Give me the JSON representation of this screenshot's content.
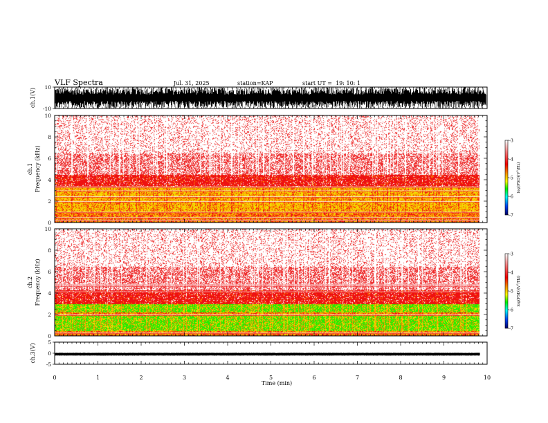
{
  "header": {
    "title": "VLF Spectra",
    "date": "Jul. 31, 2025",
    "station": "station=KAP",
    "start": "start UT =  19: 10: 1"
  },
  "colors": {
    "frame": "#000000",
    "spectro_bg": "#ffffff",
    "speckle": "#ee2a2a",
    "red": "#ee1111",
    "orange": "#ff8a00",
    "yellow": "#f2e000",
    "green": "#22ee00"
  },
  "chart_data": [
    {
      "type": "line",
      "name": "ch1-waveform",
      "ylabel": "ch.1(V)",
      "ylim": [
        -10,
        10
      ],
      "yticks": [
        10,
        -10
      ],
      "xlim": [
        0,
        10
      ],
      "description_values": {
        "min": -10,
        "max": 10
      }
    },
    {
      "type": "heatmap",
      "name": "ch1-spectrogram",
      "ylabel": "ch.1\nFrequency (kHz)",
      "ylabel_lines": [
        "ch.1",
        "Frequency (kHz)"
      ],
      "ylim": [
        0,
        10
      ],
      "yticks": [
        0,
        2,
        4,
        6,
        8,
        10
      ],
      "xlim": [
        0,
        10
      ],
      "data_end_min": 9.83,
      "bands": [
        {
          "from": 0,
          "to": 0.4,
          "level": "orange"
        },
        {
          "from": 0.4,
          "to": 1.6,
          "level": "orange"
        },
        {
          "from": 1.0,
          "to": 2.0,
          "level": "yellow"
        },
        {
          "from": 2.0,
          "to": 3.4,
          "level": "yellow"
        },
        {
          "from": 3.4,
          "to": 4.5,
          "level": "red"
        },
        {
          "from": 4.5,
          "to": 6.5,
          "level": "speckle-dense"
        },
        {
          "from": 6.5,
          "to": 10,
          "level": "speckle"
        }
      ],
      "lines_khz": [
        0.25,
        0.5,
        1.0,
        2.0,
        2.45,
        3.0,
        3.35
      ],
      "colorbar": {
        "label": "log(PSD)(V²/Hz)",
        "label_parts": [
          "log(PSD)(V",
          "2",
          "/Hz)"
        ],
        "ticks": [
          -3,
          -4,
          -5,
          -6,
          -7
        ],
        "range": [
          -7,
          -3
        ]
      }
    },
    {
      "type": "heatmap",
      "name": "ch2-spectrogram",
      "ylabel": "ch.2\nFrequency (kHz)",
      "ylabel_lines": [
        "ch.2",
        "Frequency (kHz)"
      ],
      "ylim": [
        0,
        10
      ],
      "yticks": [
        0,
        2,
        4,
        6,
        8,
        10
      ],
      "xlim": [
        0,
        10
      ],
      "data_end_min": 9.83,
      "bands": [
        {
          "from": 0,
          "to": 0.5,
          "level": "orange"
        },
        {
          "from": 0.5,
          "to": 1.9,
          "level": "green"
        },
        {
          "from": 1.9,
          "to": 2.2,
          "level": "orange"
        },
        {
          "from": 2.2,
          "to": 3.0,
          "level": "green"
        },
        {
          "from": 3.0,
          "to": 4.3,
          "level": "red"
        },
        {
          "from": 4.3,
          "to": 6.5,
          "level": "speckle-dense"
        },
        {
          "from": 6.5,
          "to": 10,
          "level": "speckle"
        }
      ],
      "lines_khz": [
        0.3,
        2.0,
        4.15,
        4.7,
        4.85
      ],
      "colorbar": {
        "label": "log(PSD)(V²/Hz)",
        "label_parts": [
          "log(PSD)(V",
          "2",
          "/Hz)"
        ],
        "ticks": [
          -3,
          -4,
          -5,
          -6,
          -7
        ],
        "range": [
          -7,
          -3
        ]
      }
    },
    {
      "type": "line",
      "name": "ch3-waveform",
      "ylabel": "ch.3(V)",
      "ylim": [
        -5,
        5
      ],
      "yticks": [
        5,
        0,
        -5
      ],
      "xlim": [
        0,
        10
      ],
      "xlabel": "Time (min)",
      "xticks": [
        0,
        1,
        2,
        3,
        4,
        5,
        6,
        7,
        8,
        9,
        10
      ],
      "signal_range": [
        -1.1,
        0.2
      ]
    }
  ]
}
